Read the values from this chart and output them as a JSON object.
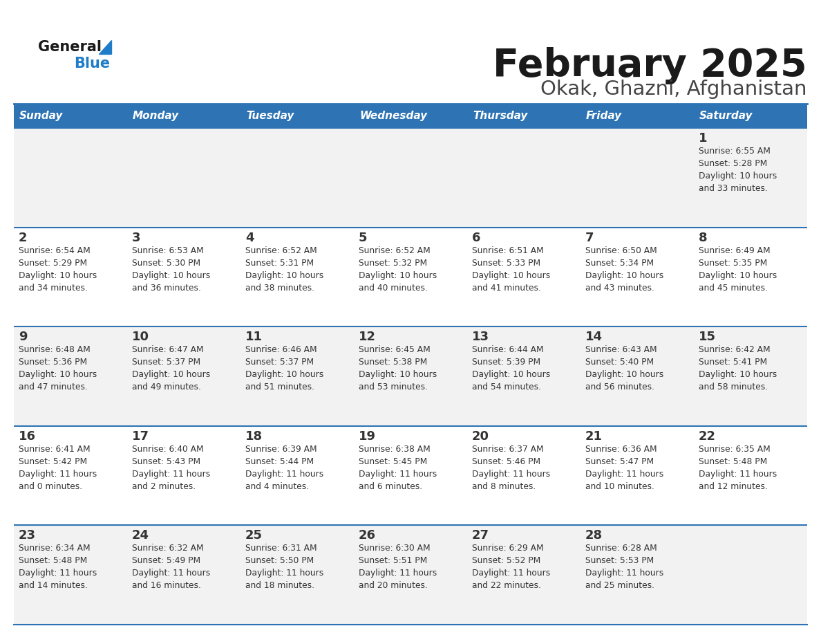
{
  "title": "February 2025",
  "subtitle": "Okak, Ghazni, Afghanistan",
  "days_of_week": [
    "Sunday",
    "Monday",
    "Tuesday",
    "Wednesday",
    "Thursday",
    "Friday",
    "Saturday"
  ],
  "header_bg": "#2E74B5",
  "header_text": "#FFFFFF",
  "cell_bg_odd": "#F2F2F2",
  "cell_bg_even": "#FFFFFF",
  "divider_color": "#2E74B5",
  "text_color": "#333333",
  "title_color": "#1A1A1A",
  "subtitle_color": "#444444",
  "logo_general_color": "#1A1A1A",
  "logo_blue_color": "#1E7CC8",
  "calendar_data": [
    [
      null,
      null,
      null,
      null,
      null,
      null,
      {
        "day": 1,
        "sunrise": "6:55 AM",
        "sunset": "5:28 PM",
        "daylight": "10 hours",
        "daylight2": "and 33 minutes."
      }
    ],
    [
      {
        "day": 2,
        "sunrise": "6:54 AM",
        "sunset": "5:29 PM",
        "daylight": "10 hours",
        "daylight2": "and 34 minutes."
      },
      {
        "day": 3,
        "sunrise": "6:53 AM",
        "sunset": "5:30 PM",
        "daylight": "10 hours",
        "daylight2": "and 36 minutes."
      },
      {
        "day": 4,
        "sunrise": "6:52 AM",
        "sunset": "5:31 PM",
        "daylight": "10 hours",
        "daylight2": "and 38 minutes."
      },
      {
        "day": 5,
        "sunrise": "6:52 AM",
        "sunset": "5:32 PM",
        "daylight": "10 hours",
        "daylight2": "and 40 minutes."
      },
      {
        "day": 6,
        "sunrise": "6:51 AM",
        "sunset": "5:33 PM",
        "daylight": "10 hours",
        "daylight2": "and 41 minutes."
      },
      {
        "day": 7,
        "sunrise": "6:50 AM",
        "sunset": "5:34 PM",
        "daylight": "10 hours",
        "daylight2": "and 43 minutes."
      },
      {
        "day": 8,
        "sunrise": "6:49 AM",
        "sunset": "5:35 PM",
        "daylight": "10 hours",
        "daylight2": "and 45 minutes."
      }
    ],
    [
      {
        "day": 9,
        "sunrise": "6:48 AM",
        "sunset": "5:36 PM",
        "daylight": "10 hours",
        "daylight2": "and 47 minutes."
      },
      {
        "day": 10,
        "sunrise": "6:47 AM",
        "sunset": "5:37 PM",
        "daylight": "10 hours",
        "daylight2": "and 49 minutes."
      },
      {
        "day": 11,
        "sunrise": "6:46 AM",
        "sunset": "5:37 PM",
        "daylight": "10 hours",
        "daylight2": "and 51 minutes."
      },
      {
        "day": 12,
        "sunrise": "6:45 AM",
        "sunset": "5:38 PM",
        "daylight": "10 hours",
        "daylight2": "and 53 minutes."
      },
      {
        "day": 13,
        "sunrise": "6:44 AM",
        "sunset": "5:39 PM",
        "daylight": "10 hours",
        "daylight2": "and 54 minutes."
      },
      {
        "day": 14,
        "sunrise": "6:43 AM",
        "sunset": "5:40 PM",
        "daylight": "10 hours",
        "daylight2": "and 56 minutes."
      },
      {
        "day": 15,
        "sunrise": "6:42 AM",
        "sunset": "5:41 PM",
        "daylight": "10 hours",
        "daylight2": "and 58 minutes."
      }
    ],
    [
      {
        "day": 16,
        "sunrise": "6:41 AM",
        "sunset": "5:42 PM",
        "daylight": "11 hours",
        "daylight2": "and 0 minutes."
      },
      {
        "day": 17,
        "sunrise": "6:40 AM",
        "sunset": "5:43 PM",
        "daylight": "11 hours",
        "daylight2": "and 2 minutes."
      },
      {
        "day": 18,
        "sunrise": "6:39 AM",
        "sunset": "5:44 PM",
        "daylight": "11 hours",
        "daylight2": "and 4 minutes."
      },
      {
        "day": 19,
        "sunrise": "6:38 AM",
        "sunset": "5:45 PM",
        "daylight": "11 hours",
        "daylight2": "and 6 minutes."
      },
      {
        "day": 20,
        "sunrise": "6:37 AM",
        "sunset": "5:46 PM",
        "daylight": "11 hours",
        "daylight2": "and 8 minutes."
      },
      {
        "day": 21,
        "sunrise": "6:36 AM",
        "sunset": "5:47 PM",
        "daylight": "11 hours",
        "daylight2": "and 10 minutes."
      },
      {
        "day": 22,
        "sunrise": "6:35 AM",
        "sunset": "5:48 PM",
        "daylight": "11 hours",
        "daylight2": "and 12 minutes."
      }
    ],
    [
      {
        "day": 23,
        "sunrise": "6:34 AM",
        "sunset": "5:48 PM",
        "daylight": "11 hours",
        "daylight2": "and 14 minutes."
      },
      {
        "day": 24,
        "sunrise": "6:32 AM",
        "sunset": "5:49 PM",
        "daylight": "11 hours",
        "daylight2": "and 16 minutes."
      },
      {
        "day": 25,
        "sunrise": "6:31 AM",
        "sunset": "5:50 PM",
        "daylight": "11 hours",
        "daylight2": "and 18 minutes."
      },
      {
        "day": 26,
        "sunrise": "6:30 AM",
        "sunset": "5:51 PM",
        "daylight": "11 hours",
        "daylight2": "and 20 minutes."
      },
      {
        "day": 27,
        "sunrise": "6:29 AM",
        "sunset": "5:52 PM",
        "daylight": "11 hours",
        "daylight2": "and 22 minutes."
      },
      {
        "day": 28,
        "sunrise": "6:28 AM",
        "sunset": "5:53 PM",
        "daylight": "11 hours",
        "daylight2": "and 25 minutes."
      },
      null
    ]
  ]
}
